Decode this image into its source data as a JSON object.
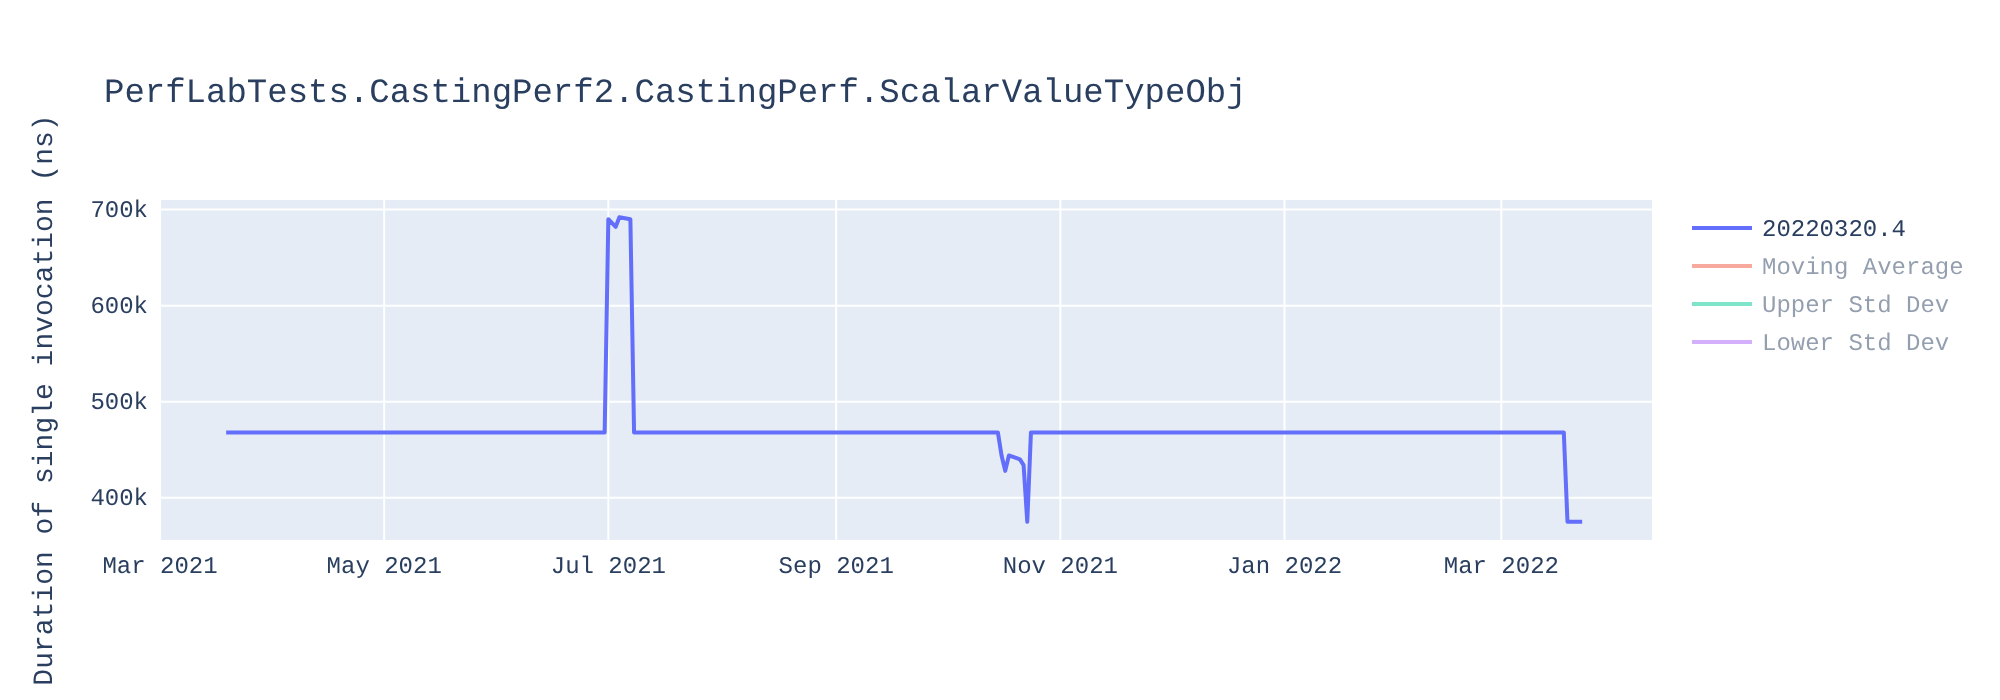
{
  "chart_data": {
    "type": "line",
    "title": "PerfLabTests.CastingPerf2.CastingPerf.ScalarValueTypeObj",
    "ylabel": "Duration of single invocation (ns)",
    "x": [
      "2021-03-19",
      "2021-06-30",
      "2021-07-01",
      "2021-07-03",
      "2021-07-04",
      "2021-07-07",
      "2021-07-08",
      "2021-10-15",
      "2021-10-16",
      "2021-10-17",
      "2021-10-18",
      "2021-10-21",
      "2021-10-22",
      "2021-10-23",
      "2021-10-24",
      "2022-03-18",
      "2022-03-19",
      "2022-03-23"
    ],
    "series": [
      {
        "name": "20220320.4",
        "color": "#636efa",
        "values": [
          468000,
          468000,
          690000,
          682000,
          692000,
          690000,
          468000,
          468000,
          444000,
          428000,
          444000,
          440000,
          434000,
          375000,
          468000,
          468000,
          375000,
          375000
        ]
      },
      {
        "name": "Moving Average",
        "color": "#ef553b",
        "values": [
          null,
          null,
          null,
          null,
          null,
          null,
          null,
          null,
          null,
          null,
          null,
          null,
          null,
          null,
          null,
          null,
          null,
          null
        ]
      },
      {
        "name": "Upper Std Dev",
        "color": "#00cc96",
        "values": [
          null,
          null,
          null,
          null,
          null,
          null,
          null,
          null,
          null,
          null,
          null,
          null,
          null,
          null,
          null,
          null,
          null,
          null
        ]
      },
      {
        "name": "Lower Std Dev",
        "color": "#ab63fa",
        "values": [
          null,
          null,
          null,
          null,
          null,
          null,
          null,
          null,
          null,
          null,
          null,
          null,
          null,
          null,
          null,
          null,
          null,
          null
        ]
      }
    ],
    "xlim": [
      "2021-03-01",
      "2022-04-11"
    ],
    "xticks": [
      {
        "value": "2021-03-01",
        "label": "Mar 2021"
      },
      {
        "value": "2021-05-01",
        "label": "May 2021"
      },
      {
        "value": "2021-07-01",
        "label": "Jul 2021"
      },
      {
        "value": "2021-09-01",
        "label": "Sep 2021"
      },
      {
        "value": "2021-11-01",
        "label": "Nov 2021"
      },
      {
        "value": "2022-01-01",
        "label": "Jan 2022"
      },
      {
        "value": "2022-03-01",
        "label": "Mar 2022"
      }
    ],
    "ylim": [
      356000,
      710000
    ],
    "yticks": [
      {
        "value": 400000,
        "label": "400k"
      },
      {
        "value": 500000,
        "label": "500k"
      },
      {
        "value": 600000,
        "label": "600k"
      },
      {
        "value": 700000,
        "label": "700k"
      }
    ],
    "grid": true,
    "legend": "right",
    "marker": "none",
    "line_style": "solid"
  }
}
